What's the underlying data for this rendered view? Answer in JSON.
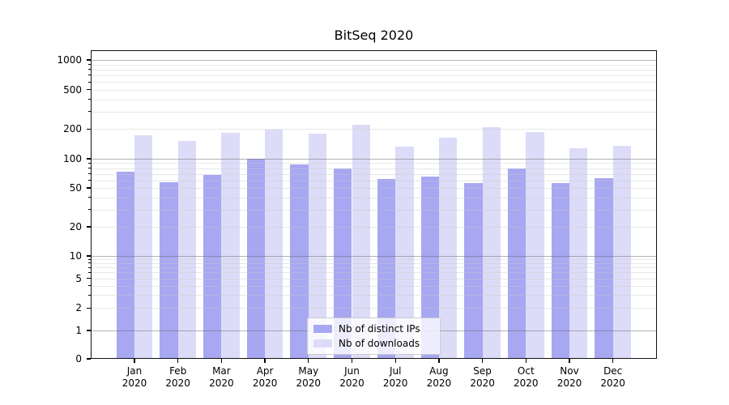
{
  "chart_data": {
    "type": "bar",
    "title": "BitSeq 2020",
    "categories": [
      "Jan",
      "Feb",
      "Mar",
      "Apr",
      "May",
      "Jun",
      "Jul",
      "Aug",
      "Sep",
      "Oct",
      "Nov",
      "Dec"
    ],
    "category_year": "2020",
    "series": [
      {
        "name": "Nb of distinct IPs",
        "color": "#a7a7f2",
        "values": [
          74,
          57,
          68,
          100,
          87,
          79,
          62,
          65,
          56,
          79,
          56,
          63
        ]
      },
      {
        "name": "Nb of downloads",
        "color": "#dcdcf8",
        "values": [
          172,
          151,
          183,
          197,
          179,
          221,
          133,
          163,
          207,
          186,
          128,
          136
        ]
      }
    ],
    "y_axis": {
      "scale": "log-with-zero (symlog)",
      "tick_labels": [
        0,
        1,
        2,
        5,
        10,
        20,
        50,
        100,
        200,
        500,
        1000
      ],
      "top_value": 1300
    },
    "x_axis": {
      "label_format": "month over year, two lines"
    },
    "legend": {
      "position": "lower center inside plot"
    },
    "grid": {
      "major_decades": [
        1,
        10,
        100,
        1000
      ],
      "minor_multiples": "2-9 per decade",
      "orientation": "horizontal"
    }
  }
}
